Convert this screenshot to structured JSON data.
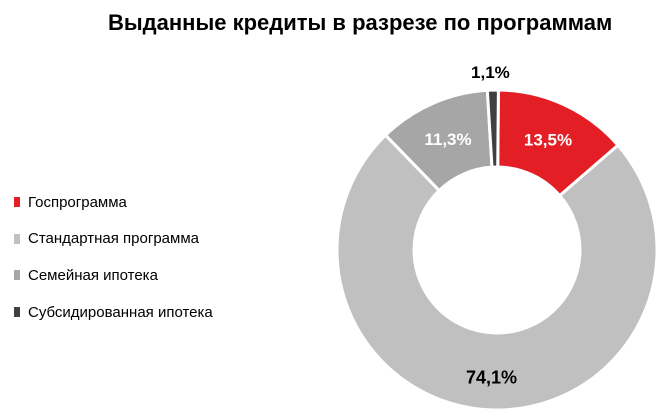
{
  "chart_data": {
    "type": "pie",
    "title": "Выданные кредиты в разрезе по программам",
    "categories": [
      "Госпрограмма",
      "Стандартная программа",
      "Семейная ипотека",
      "Субсидированная ипотека"
    ],
    "values": [
      13.5,
      74.1,
      11.3,
      1.1
    ],
    "value_labels": [
      "13,5%",
      "74,1%",
      "11,3%",
      "1,1%"
    ],
    "unit": "%",
    "style": "donut",
    "legend": "left",
    "colors": [
      "#e31e24",
      "#c0c0c0",
      "#a6a6a6",
      "#404040"
    ],
    "label_colors": [
      "#ffffff",
      "#000000",
      "#ffffff",
      "#000000"
    ]
  }
}
